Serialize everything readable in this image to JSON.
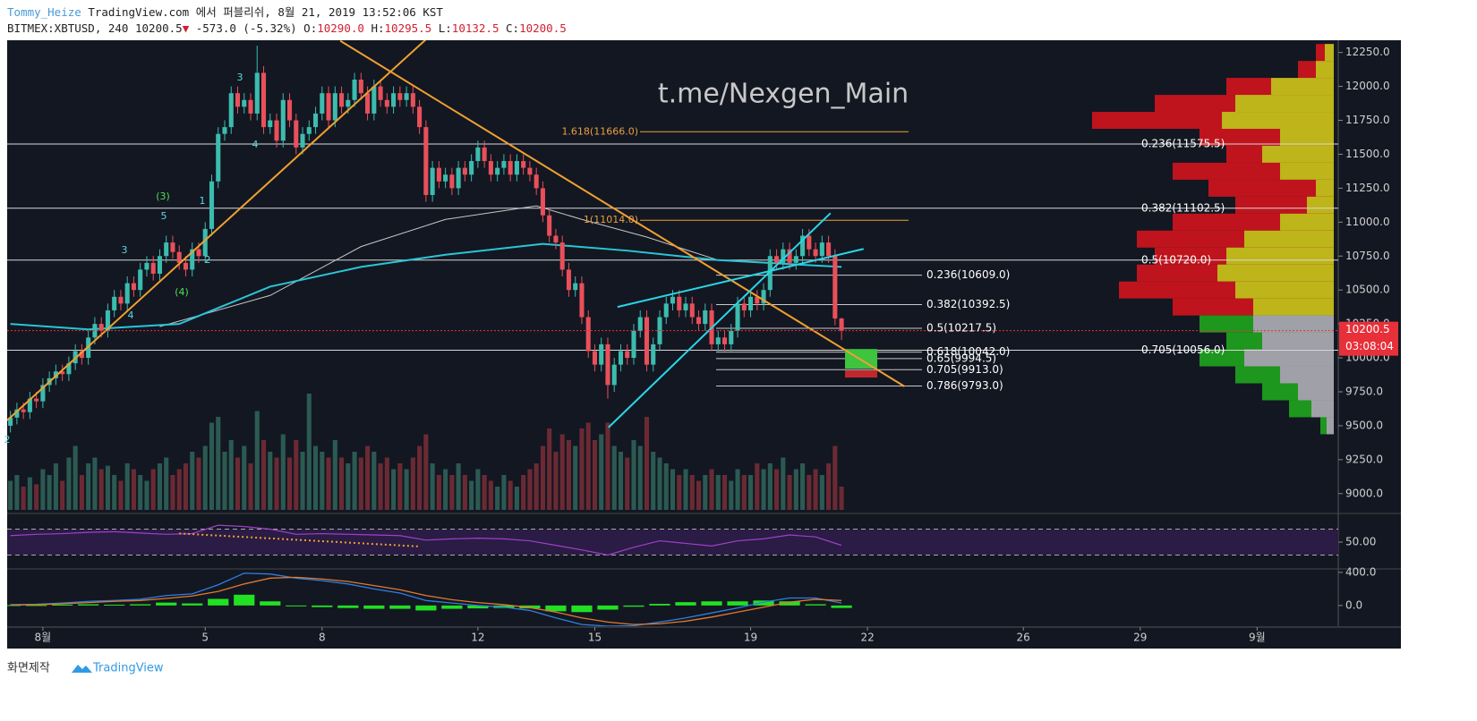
{
  "header": {
    "author": "Tommy_Heize",
    "published": "TradingView.com 에서 퍼블리쉬, 8월 21, 2019 13:52:06 KST",
    "symbol": "BITMEX:XBTUSD, 240",
    "last": "10200.5",
    "change": "-573.0 (-5.32%)",
    "ohlc_labels": [
      "O:",
      "H:",
      "L:",
      "C:"
    ],
    "ohlc_values": [
      "10290.0",
      "10295.5",
      "10132.5",
      "10200.5"
    ]
  },
  "watermark": "t.me/Nexgen_Main",
  "footer": {
    "caption": "화면제작",
    "brand": "TradingView"
  },
  "chart_data": {
    "type": "candlestick",
    "grid": false,
    "up_color": "#3cbcae",
    "down_color": "#e8505a",
    "volume_colors": [
      "#2b5a52",
      "#6b2a33"
    ],
    "xlim": [
      -0.5,
      204.5
    ],
    "xticks": [
      {
        "value": 5,
        "label": "8월"
      },
      {
        "value": 30,
        "label": "5"
      },
      {
        "value": 48,
        "label": "8"
      },
      {
        "value": 72,
        "label": "12"
      },
      {
        "value": 90,
        "label": "15"
      },
      {
        "value": 114,
        "label": "19"
      },
      {
        "value": 132,
        "label": "22"
      },
      {
        "value": 156,
        "label": "26"
      },
      {
        "value": 174,
        "label": "29"
      },
      {
        "value": 192,
        "label": "9월"
      }
    ],
    "ylim": [
      8880,
      12340
    ],
    "yticks": [
      {
        "value": 12250,
        "label": "12250.0"
      },
      {
        "value": 12000,
        "label": "12000.0"
      },
      {
        "value": 11750,
        "label": "11750.0"
      },
      {
        "value": 11500,
        "label": "11500.0"
      },
      {
        "value": 11250,
        "label": "11250.0"
      },
      {
        "value": 11000,
        "label": "11000.0"
      },
      {
        "value": 10750,
        "label": "10750.0"
      },
      {
        "value": 10500,
        "label": "10500.0"
      },
      {
        "value": 10250,
        "label": "10250.0"
      },
      {
        "value": 10000,
        "label": "10000.0"
      },
      {
        "value": 9750,
        "label": "9750.0"
      },
      {
        "value": 9500,
        "label": "9500.0"
      },
      {
        "value": 9250,
        "label": "9250.0"
      },
      {
        "value": 9000,
        "label": "9000.0"
      }
    ],
    "open": [
      9500,
      9560,
      9620,
      9600,
      9700,
      9680,
      9800,
      9850,
      9900,
      9880,
      9960,
      10050,
      10000,
      10150,
      10250,
      10200,
      10350,
      10450,
      10400,
      10550,
      10500,
      10650,
      10700,
      10620,
      10750,
      10850,
      10780,
      10700,
      10650,
      10800,
      10750,
      10950,
      11300,
      11650,
      11700,
      11950,
      11850,
      11900,
      11800,
      12100,
      11700,
      11750,
      11600,
      11900,
      11750,
      11550,
      11650,
      11700,
      11800,
      11950,
      11750,
      11950,
      11850,
      11900,
      12050,
      11950,
      11800,
      12000,
      11900,
      11850,
      11950,
      11900,
      11950,
      11850,
      11700,
      11200,
      11400,
      11300,
      11350,
      11250,
      11400,
      11350,
      11450,
      11550,
      11450,
      11350,
      11400,
      11450,
      11350,
      11450,
      11400,
      11350,
      11250,
      11050,
      10900,
      10850,
      10650,
      10500,
      10550,
      10300,
      10050,
      9950,
      10100,
      9800,
      9950,
      10050,
      10000,
      10200,
      10300,
      9950,
      10100,
      10300,
      10400,
      10450,
      10350,
      10400,
      10300,
      10250,
      10350,
      10100,
      10150,
      10100,
      10200,
      10400,
      10350,
      10450,
      10400,
      10500,
      10750,
      10700,
      10800,
      10700,
      10750,
      10900,
      10800,
      10750,
      10850,
      10750,
      10290
    ],
    "high": [
      9610,
      9670,
      9670,
      9750,
      9750,
      9850,
      9900,
      9950,
      9950,
      10010,
      10100,
      10100,
      10200,
      10300,
      10300,
      10400,
      10500,
      10500,
      10600,
      10600,
      10700,
      10750,
      10750,
      10800,
      10900,
      10900,
      10830,
      10750,
      10850,
      10850,
      11000,
      11350,
      11700,
      11750,
      12000,
      12000,
      11950,
      11950,
      12300,
      12150,
      11800,
      11800,
      11950,
      11950,
      11800,
      11700,
      11750,
      11850,
      12000,
      12000,
      12000,
      12000,
      11950,
      12100,
      12100,
      12000,
      12050,
      12050,
      11950,
      12000,
      12000,
      12000,
      12000,
      11900,
      11750,
      11450,
      11450,
      11400,
      11400,
      11450,
      11450,
      11500,
      11600,
      11600,
      11500,
      11450,
      11500,
      11500,
      11500,
      11500,
      11450,
      11400,
      11300,
      11100,
      10950,
      10900,
      10700,
      10600,
      10600,
      10350,
      10100,
      10150,
      10150,
      10000,
      10100,
      10100,
      10250,
      10350,
      10350,
      10150,
      10350,
      10450,
      10500,
      10500,
      10450,
      10450,
      10350,
      10400,
      10400,
      10200,
      10200,
      10250,
      10450,
      10450,
      10500,
      10500,
      10550,
      10800,
      10800,
      10850,
      10850,
      10800,
      10950,
      10950,
      10850,
      10900,
      10900,
      10800,
      10295.5
    ],
    "low": [
      9450,
      9510,
      9550,
      9550,
      9630,
      9630,
      9750,
      9800,
      9830,
      9830,
      9910,
      9950,
      9950,
      10100,
      10150,
      10150,
      10300,
      10350,
      10350,
      10450,
      10450,
      10600,
      10570,
      10570,
      10700,
      10730,
      10650,
      10600,
      10600,
      10700,
      10700,
      10900,
      11250,
      11600,
      11650,
      11800,
      11800,
      11750,
      11750,
      11650,
      11650,
      11550,
      11550,
      11700,
      11500,
      11500,
      11600,
      11650,
      11750,
      11700,
      11700,
      11800,
      11800,
      11850,
      11900,
      11750,
      11750,
      11850,
      11800,
      11800,
      11850,
      11850,
      11800,
      11650,
      11150,
      11150,
      11250,
      11250,
      11200,
      11200,
      11300,
      11300,
      11400,
      11400,
      11300,
      11300,
      11350,
      11300,
      11300,
      11350,
      11300,
      11200,
      11000,
      10850,
      10800,
      10600,
      10450,
      10450,
      10250,
      10000,
      9900,
      9900,
      9700,
      9750,
      9900,
      9950,
      9950,
      10150,
      9900,
      9900,
      10050,
      10250,
      10350,
      10300,
      10300,
      10250,
      10200,
      10200,
      10050,
      10050,
      10050,
      10050,
      10150,
      10300,
      10300,
      10350,
      10350,
      10450,
      10650,
      10650,
      10650,
      10650,
      10700,
      10750,
      10700,
      10700,
      10700,
      10240,
      10132.5
    ],
    "close": [
      9560,
      9620,
      9600,
      9700,
      9680,
      9800,
      9850,
      9900,
      9880,
      9960,
      10050,
      10000,
      10150,
      10250,
      10200,
      10350,
      10450,
      10400,
      10550,
      10500,
      10650,
      10700,
      10620,
      10750,
      10850,
      10780,
      10700,
      10650,
      10800,
      10750,
      10950,
      11300,
      11650,
      11700,
      11950,
      11850,
      11900,
      11800,
      12100,
      11700,
      11750,
      11600,
      11900,
      11750,
      11550,
      11650,
      11700,
      11800,
      11950,
      11750,
      11950,
      11850,
      11900,
      12050,
      11950,
      11800,
      12000,
      11900,
      11850,
      11950,
      11900,
      11950,
      11850,
      11700,
      11200,
      11400,
      11300,
      11350,
      11250,
      11400,
      11350,
      11450,
      11550,
      11450,
      11350,
      11400,
      11450,
      11350,
      11450,
      11400,
      11350,
      11250,
      11050,
      10900,
      10850,
      10650,
      10500,
      10550,
      10300,
      10050,
      9950,
      10100,
      9800,
      9950,
      10050,
      10000,
      10200,
      10300,
      9950,
      10100,
      10300,
      10400,
      10450,
      10350,
      10400,
      10300,
      10250,
      10350,
      10100,
      10150,
      10100,
      10200,
      10400,
      10350,
      10450,
      10400,
      10500,
      10750,
      10700,
      10800,
      10700,
      10750,
      10900,
      10800,
      10750,
      10850,
      10750,
      10290,
      10200.5
    ],
    "volume_lim": [
      0,
      100
    ],
    "volume": [
      25,
      30,
      20,
      28,
      22,
      35,
      30,
      40,
      25,
      45,
      55,
      30,
      40,
      45,
      35,
      38,
      30,
      25,
      40,
      35,
      30,
      25,
      35,
      40,
      45,
      30,
      35,
      40,
      50,
      45,
      55,
      75,
      80,
      50,
      60,
      45,
      55,
      40,
      85,
      60,
      50,
      45,
      65,
      45,
      60,
      50,
      100,
      55,
      50,
      45,
      60,
      45,
      40,
      50,
      45,
      55,
      50,
      40,
      45,
      35,
      40,
      35,
      45,
      55,
      65,
      40,
      30,
      35,
      30,
      40,
      30,
      25,
      35,
      30,
      25,
      20,
      30,
      25,
      20,
      30,
      35,
      40,
      55,
      70,
      50,
      65,
      60,
      55,
      70,
      75,
      60,
      65,
      75,
      55,
      50,
      45,
      60,
      55,
      80,
      50,
      45,
      40,
      35,
      30,
      35,
      30,
      25,
      30,
      35,
      30,
      30,
      25,
      35,
      30,
      30,
      40,
      35,
      40,
      35,
      45,
      30,
      35,
      40,
      30,
      35,
      30,
      40,
      55,
      20
    ],
    "moving_averages": [
      {
        "color": "#c8c8c8",
        "x": [
          23,
          40,
          54,
          67,
          81,
          88,
          98,
          109,
          128
        ],
        "values": [
          10230,
          10460,
          10820,
          11020,
          11120,
          11020,
          10890,
          10720,
          10670
        ]
      },
      {
        "color": "#29c6d6",
        "x": [
          0,
          12,
          26,
          40,
          54,
          67,
          82,
          95,
          109,
          128
        ],
        "values": [
          10250,
          10210,
          10250,
          10525,
          10670,
          10760,
          10840,
          10790,
          10720,
          10670
        ]
      }
    ],
    "trend_lines": [
      {
        "color": "#f0a030",
        "points": [
          [
            -0.5,
            9540
          ],
          [
            64.5,
            12368
          ]
        ]
      },
      {
        "color": "#f0a030",
        "points": [
          [
            50.8,
            12336
          ],
          [
            137.7,
            9789.5
          ]
        ]
      },
      {
        "color": "#29d6e6",
        "points": [
          [
            92.1,
            9487
          ],
          [
            126.3,
            11066
          ]
        ]
      },
      {
        "color": "#29d6e6",
        "points": [
          [
            93.5,
            10375
          ],
          [
            131.4,
            10802.6
          ]
        ]
      }
    ],
    "fib_major": {
      "color": "#d8d8d8",
      "levels": [
        {
          "label": "0.236(11575.5)",
          "price": 11575.5
        },
        {
          "label": "0.382(11102.5)",
          "price": 11102.5
        },
        {
          "label": "0.5(10720.0)",
          "price": 10720
        },
        {
          "label": "0.705(10056.0)",
          "price": 10056
        }
      ]
    },
    "fib_minor": {
      "color": "#c8c8c8",
      "levels": [
        {
          "label": "0.236(10609.0)",
          "price": 10609
        },
        {
          "label": "0.382(10392.5)",
          "price": 10392.5
        },
        {
          "label": "0.5(10217.5)",
          "price": 10217.5
        },
        {
          "label": "0.618(10042.0)",
          "price": 10042
        },
        {
          "label": "0.65(9994.5)",
          "price": 9994.5
        },
        {
          "label": "0.705(9913.0)",
          "price": 9913
        },
        {
          "label": "0.786(9793.0)",
          "price": 9793
        }
      ]
    },
    "fib_extension": {
      "color": "#e8a040",
      "levels": [
        {
          "label": "1.618(11666.0)",
          "price": 11666
        },
        {
          "label": "1(11014.0)",
          "price": 11014
        }
      ]
    },
    "zones": [
      {
        "color": "#3ec43e",
        "top": 10065,
        "bottom": 9921
      },
      {
        "color": "#c0282e",
        "top": 9908,
        "bottom": 9855
      }
    ],
    "last_price": {
      "label": "10200.5",
      "countdown": "03:08:04",
      "color": "#e8303a"
    },
    "wave_labels": [
      "3",
      "4",
      "(3)",
      "5",
      "1",
      "3",
      "2",
      "(4)",
      "4",
      "2"
    ],
    "volume_profile": [
      {
        "colors": [
          "#c8141e",
          "#bdb51a"
        ],
        "prices": [
          12250,
          12125,
          12000,
          11875,
          11750,
          11625,
          11500,
          11375,
          11250,
          11125,
          11000,
          10875,
          10750,
          10625,
          10500,
          10375
        ],
        "totals": [
          20,
          40,
          120,
          200,
          270,
          150,
          120,
          180,
          140,
          110,
          180,
          220,
          200,
          220,
          240,
          180
        ],
        "inner": [
          10,
          20,
          70,
          110,
          125,
          60,
          80,
          60,
          20,
          30,
          60,
          100,
          120,
          130,
          110,
          90
        ]
      },
      {
        "colors": [
          "#1e9e1e",
          "#a0a0a8"
        ],
        "prices": [
          10250,
          10125,
          10000,
          9875,
          9750,
          9625,
          9500
        ],
        "totals": [
          150,
          120,
          150,
          110,
          80,
          50,
          15
        ],
        "inner": [
          90,
          80,
          100,
          60,
          40,
          25,
          8
        ]
      }
    ],
    "rsi": {
      "color": "#a040c8",
      "ylim": [
        10,
        90
      ],
      "yticks": [
        {
          "value": 50,
          "label": "50.00"
        }
      ],
      "bands": [
        30,
        70
      ],
      "x": [
        0,
        4,
        8,
        12,
        16,
        20,
        24,
        28,
        32,
        36,
        40,
        44,
        48,
        52,
        56,
        60,
        64,
        68,
        72,
        76,
        80,
        84,
        88,
        92,
        96,
        100,
        104,
        108,
        112,
        116,
        120,
        124,
        128
      ],
      "values": [
        60,
        62,
        63,
        65,
        66,
        64,
        62,
        63,
        76,
        74,
        70,
        62,
        63,
        62,
        61,
        60,
        53,
        55,
        56,
        55,
        52,
        45,
        38,
        30,
        42,
        52,
        48,
        44,
        52,
        55,
        61,
        58,
        45
      ],
      "divergence": {
        "color": "#f0a030",
        "points": [
          [
            26,
            63.3
          ],
          [
            63,
            43.3
          ]
        ]
      }
    },
    "macd": {
      "ylim": [
        -250,
        420
      ],
      "yticks": [
        {
          "value": 400,
          "label": "400.0"
        },
        {
          "value": 0,
          "label": "0.0"
        }
      ],
      "colors": [
        "#2f7fe0",
        "#e07a30",
        "#22e022"
      ],
      "x": [
        0,
        4,
        8,
        12,
        16,
        20,
        24,
        28,
        32,
        36,
        40,
        44,
        48,
        52,
        56,
        60,
        64,
        68,
        72,
        76,
        80,
        84,
        88,
        92,
        96,
        100,
        104,
        108,
        112,
        116,
        120,
        124,
        128
      ],
      "macd": [
        10,
        15,
        30,
        50,
        60,
        75,
        120,
        140,
        250,
        390,
        380,
        330,
        300,
        260,
        200,
        150,
        60,
        30,
        0,
        -20,
        -60,
        -150,
        -230,
        -250,
        -245,
        -200,
        -150,
        -90,
        -30,
        40,
        90,
        90,
        30
      ],
      "signal": [
        5,
        10,
        20,
        35,
        50,
        60,
        85,
        115,
        170,
        260,
        330,
        340,
        320,
        290,
        240,
        190,
        120,
        70,
        35,
        10,
        -25,
        -80,
        -150,
        -200,
        -230,
        -220,
        -190,
        -140,
        -80,
        -20,
        40,
        75,
        60
      ],
      "histogram": [
        5,
        5,
        10,
        15,
        10,
        15,
        35,
        25,
        80,
        130,
        50,
        -10,
        -20,
        -30,
        -40,
        -40,
        -60,
        -40,
        -35,
        -30,
        -35,
        -70,
        -80,
        -50,
        -15,
        20,
        40,
        50,
        50,
        60,
        50,
        15,
        -30
      ]
    }
  }
}
